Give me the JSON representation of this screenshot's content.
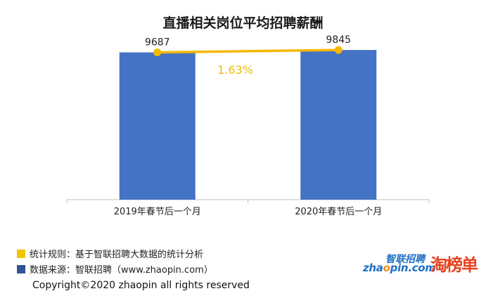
{
  "chart_data": {
    "type": "bar",
    "title": "直播相关岗位平均招聘薪酬",
    "categories": [
      "2019年春节后一个月",
      "2020年春节后一个月"
    ],
    "values": [
      9687,
      9845
    ],
    "value_labels": [
      "9687",
      "9845"
    ],
    "growth_label": "1.63%",
    "ylim": [
      0,
      12000
    ],
    "bar_color": "#4472c4",
    "line_color": "#f5b800",
    "grid": false
  },
  "notes": {
    "rule": "统计规则：基于智联招聘大数据的统计分析",
    "source": "数据来源：智联招聘（www.zhaopin.com）",
    "rule_color": "#f5c400",
    "source_color": "#2f5597"
  },
  "copyright": "Copyright©2020 zhaopin all rights reserved",
  "logos": {
    "zhaopin_cn": "智联招聘",
    "zhaopin_en_a": "zha",
    "zhaopin_en_o": "o",
    "zhaopin_en_b": "pin.com",
    "taobangdan": "淘榜单"
  }
}
